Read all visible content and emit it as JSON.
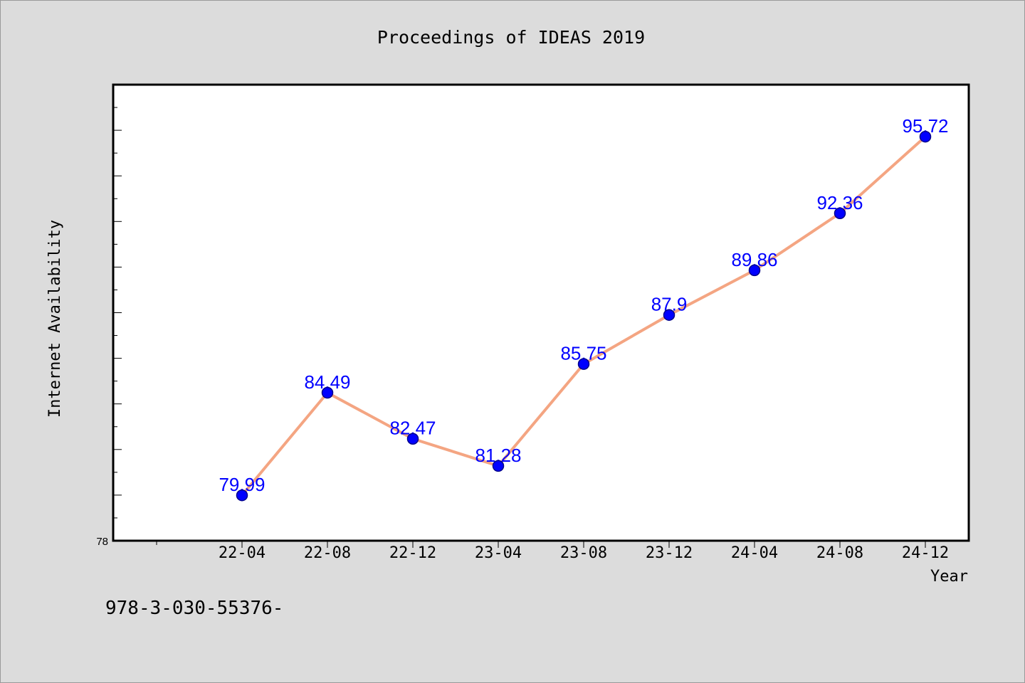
{
  "chart_data": {
    "type": "line",
    "title": "Proceedings of IDEAS 2019",
    "xlabel": "Year",
    "ylabel": "Internet Availability",
    "categories": [
      "22-04",
      "22-08",
      "22-12",
      "23-04",
      "23-08",
      "23-12",
      "24-04",
      "24-08",
      "24-12"
    ],
    "values": [
      79.99,
      84.49,
      82.47,
      81.28,
      85.75,
      87.9,
      89.86,
      92.36,
      95.72
    ],
    "ylim": [
      78,
      98
    ],
    "y_tick_label": "78",
    "grid": false,
    "legend": "none",
    "colors": {
      "line": "#f4a582",
      "marker": "#0000ff",
      "label": "#0000ff",
      "background": "#dcdcdc",
      "plot_area": "#ffffff"
    }
  },
  "footer": {
    "text": "978-3-030-55376-"
  }
}
